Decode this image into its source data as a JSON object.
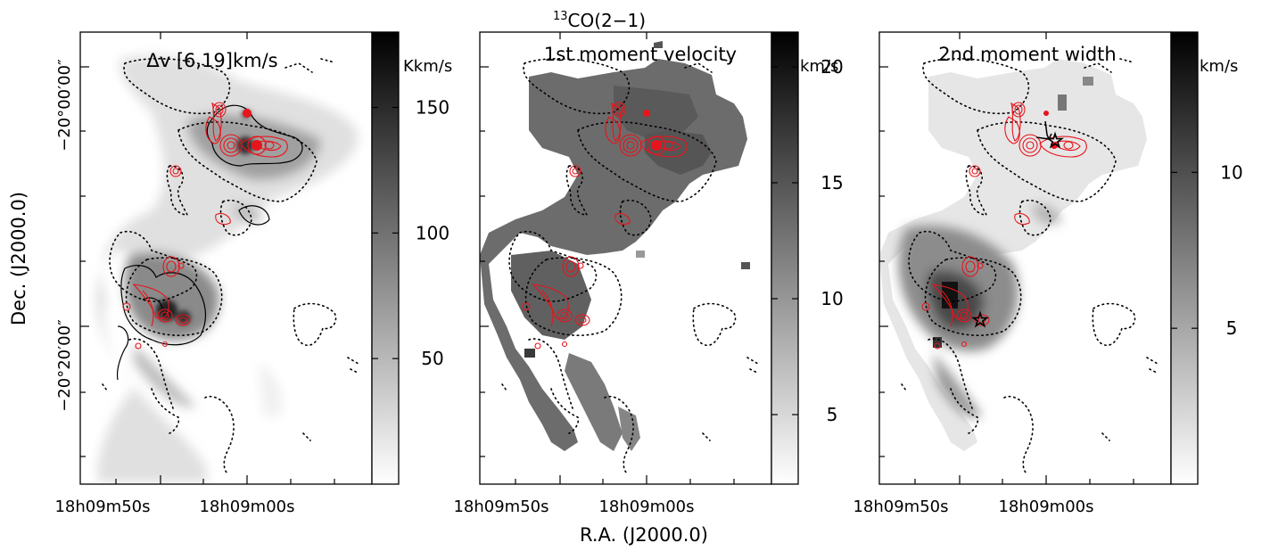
{
  "figure": {
    "title_html_sup": "13",
    "title_text": "CO(2−1)",
    "ylabel": "Dec. (J2000.0)",
    "xlabel": "R.A. (J2000.0)"
  },
  "panels": [
    {
      "label": "Δv [6,19]km/s",
      "x_ticks": [
        "18h09m50s",
        "18h09m00s"
      ],
      "y_ticks": [
        "−20°00′00″",
        "−20°20′00″"
      ],
      "cbar_unit": "Kkm/s",
      "cbar_ticks": [
        {
          "value": 150,
          "label": "150"
        },
        {
          "value": 100,
          "label": "100"
        },
        {
          "value": 50,
          "label": "50"
        }
      ],
      "cbar_range": [
        0,
        180
      ]
    },
    {
      "label": "1st moment velocity",
      "x_ticks": [
        "18h09m50s",
        "18h09m00s"
      ],
      "cbar_unit": "km/s",
      "cbar_ticks": [
        {
          "value": 20,
          "label": "20"
        },
        {
          "value": 15,
          "label": "15"
        },
        {
          "value": 10,
          "label": "10"
        },
        {
          "value": 5,
          "label": "5"
        }
      ],
      "cbar_range": [
        2,
        21.5
      ]
    },
    {
      "label": "2nd moment width",
      "x_ticks": [
        "18h09m50s",
        "18h09m00s"
      ],
      "cbar_unit": "km/s",
      "cbar_ticks": [
        {
          "value": 10,
          "label": "10"
        },
        {
          "value": 5,
          "label": "5"
        }
      ],
      "cbar_range": [
        0,
        14.5
      ]
    }
  ],
  "colors": {
    "contour_red": "#e8141c",
    "contour_black": "#000000",
    "cbar_top": "#000000",
    "cbar_bottom": "#ffffff"
  }
}
